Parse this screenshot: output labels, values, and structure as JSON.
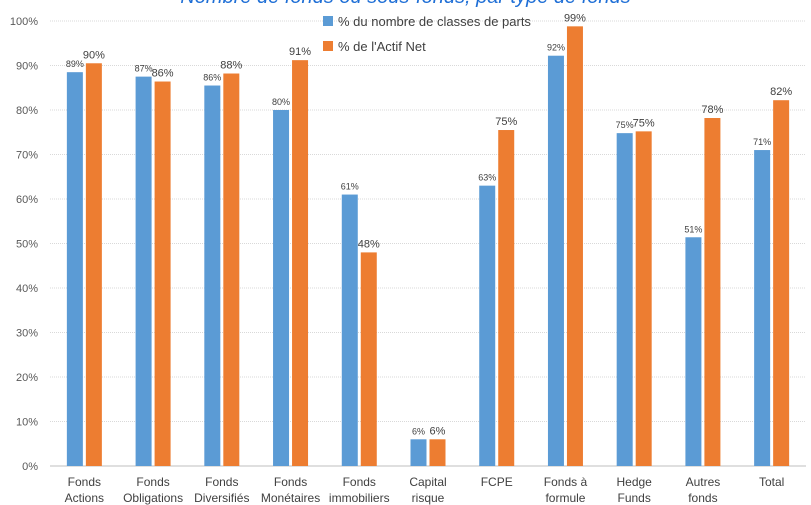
{
  "chart_data": {
    "type": "bar",
    "title": "Nombre de fonds ou sous-fonds, par type de fonds",
    "categories": [
      [
        "Fonds",
        "Actions"
      ],
      [
        "Fonds",
        "Obligations"
      ],
      [
        "Fonds",
        "Diversifiés"
      ],
      [
        "Fonds",
        "Monétaires"
      ],
      [
        "Fonds",
        "immobiliers"
      ],
      [
        "Capital",
        "risque"
      ],
      [
        "FCPE"
      ],
      [
        "Fonds à",
        "formule"
      ],
      [
        "Hedge",
        "Funds"
      ],
      [
        "Autres",
        "fonds"
      ],
      [
        "Total"
      ]
    ],
    "series": [
      {
        "name": "% du nombre de classes de parts",
        "color": "#5b9bd5",
        "values": [
          88.5,
          87.5,
          85.5,
          80,
          61,
          6,
          63,
          92.2,
          74.8,
          51.4,
          71
        ],
        "labels": [
          "89%",
          "87%",
          "86%",
          "80%",
          "61%",
          "6%",
          "63%",
          "92%",
          "75%",
          "51%",
          "71%"
        ]
      },
      {
        "name": "% de l'Actif Net",
        "color": "#ed7d31",
        "values": [
          90.5,
          86.4,
          88.2,
          91.2,
          48,
          6,
          75.5,
          98.8,
          75.2,
          78.2,
          82.2
        ],
        "labels": [
          "90%",
          "86%",
          "88%",
          "91%",
          "48%",
          "6%",
          "75%",
          "99%",
          "75%",
          "78%",
          "82%"
        ]
      }
    ],
    "ylim": [
      0,
      100
    ],
    "yticks": [
      "0%",
      "10%",
      "20%",
      "30%",
      "40%",
      "50%",
      "60%",
      "70%",
      "80%",
      "90%",
      "100%"
    ],
    "grid": true,
    "legend_position": "top-center"
  }
}
